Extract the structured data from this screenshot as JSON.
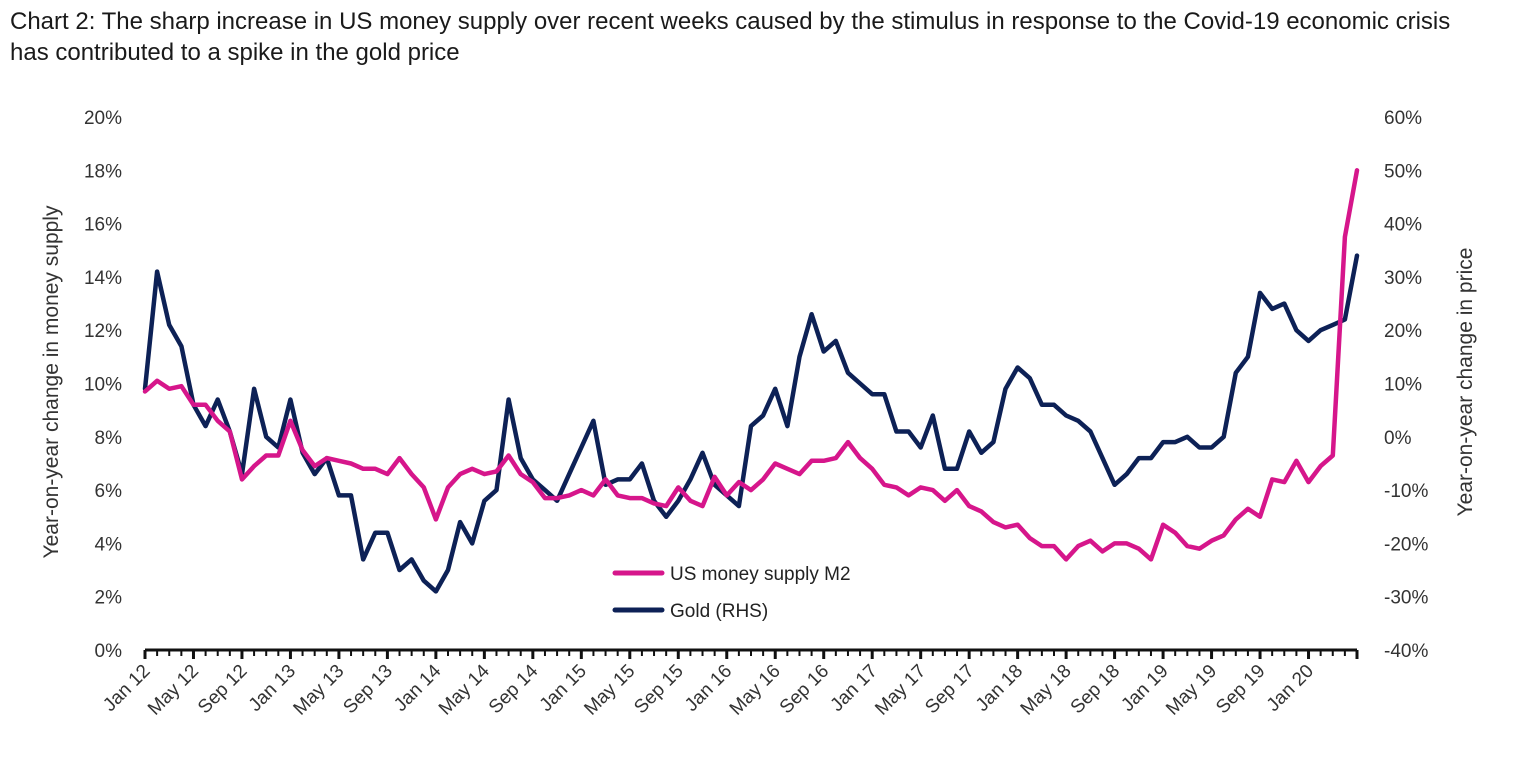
{
  "chart_data": {
    "type": "line",
    "title": "Chart 2: The sharp increase in US money supply over recent weeks caused by the stimulus in response to the Covid-19 economic crisis has contributed to a spike in the gold price",
    "ylabel_left": "Year-on-year change in money supply",
    "ylabel_right": "Year-on-year change in price",
    "ylim_left": [
      0,
      20
    ],
    "ylim_right": [
      -40,
      60
    ],
    "yticks_left": [
      "0%",
      "2%",
      "4%",
      "6%",
      "8%",
      "10%",
      "12%",
      "14%",
      "16%",
      "18%",
      "20%"
    ],
    "yticks_right": [
      "-40%",
      "-30%",
      "-20%",
      "-10%",
      "0%",
      "10%",
      "20%",
      "30%",
      "40%",
      "50%",
      "60%"
    ],
    "x_start": "Jan 12",
    "x_tick_labels": [
      "Jan 12",
      "May 12",
      "Sep 12",
      "Jan 13",
      "May 13",
      "Sep 13",
      "Jan 14",
      "May 14",
      "Sep 14",
      "Jan 15",
      "May 15",
      "Sep 15",
      "Jan 16",
      "May 16",
      "Sep 16",
      "Jan 17",
      "May 17",
      "Sep 17",
      "Jan 18",
      "May 18",
      "Sep 18",
      "Jan 19",
      "May 19",
      "Sep 19",
      "Jan 20"
    ],
    "grid": false,
    "legend_position": "bottom-center",
    "series": [
      {
        "name": "US money supply M2",
        "axis": "left",
        "color": "#d6168b",
        "values": [
          9.7,
          10.1,
          9.8,
          9.9,
          9.2,
          9.2,
          8.6,
          8.2,
          6.4,
          6.9,
          7.3,
          7.3,
          8.6,
          7.5,
          6.9,
          7.2,
          7.1,
          7.0,
          6.8,
          6.8,
          6.6,
          7.2,
          6.6,
          6.1,
          4.9,
          6.1,
          6.6,
          6.8,
          6.6,
          6.7,
          7.3,
          6.6,
          6.3,
          5.7,
          5.7,
          5.8,
          6.0,
          5.8,
          6.4,
          5.8,
          5.7,
          5.7,
          5.5,
          5.4,
          6.1,
          5.6,
          5.4,
          6.5,
          5.8,
          6.3,
          6.0,
          6.4,
          7.0,
          6.8,
          6.6,
          7.1,
          7.1,
          7.2,
          7.8,
          7.2,
          6.8,
          6.2,
          6.1,
          5.8,
          6.1,
          6.0,
          5.6,
          6.0,
          5.4,
          5.2,
          4.8,
          4.6,
          4.7,
          4.2,
          3.9,
          3.9,
          3.4,
          3.9,
          4.1,
          3.7,
          4.0,
          4.0,
          3.8,
          3.4,
          4.7,
          4.4,
          3.9,
          3.8,
          4.1,
          4.3,
          4.9,
          5.3,
          5.0,
          6.4,
          6.3,
          7.1,
          6.3,
          6.9,
          7.3,
          15.5,
          18.0
        ]
      },
      {
        "name": "Gold (RHS)",
        "axis": "right",
        "color": "#0d2156",
        "values": [
          9,
          31,
          21,
          17,
          6,
          2,
          7,
          1,
          -7,
          9,
          0,
          -2,
          7,
          -3,
          -7,
          -4,
          -11,
          -11,
          -23,
          -18,
          -18,
          -25,
          -23,
          -27,
          -29,
          -25,
          -16,
          -20,
          -12,
          -10,
          7,
          -4,
          -8,
          -10,
          -12,
          -7,
          -2,
          3,
          -9,
          -8,
          -8,
          -5,
          -12,
          -15,
          -12,
          -8,
          -3,
          -9,
          -11,
          -13,
          2,
          4,
          9,
          2,
          15,
          23,
          16,
          18,
          12,
          10,
          8,
          8,
          1,
          1,
          -2,
          4,
          -6,
          -6,
          1,
          -3,
          -1,
          9,
          13,
          11,
          6,
          6,
          4,
          3,
          1,
          -4,
          -9,
          -7,
          -4,
          -4,
          -1,
          -1,
          0,
          -2,
          -2,
          0,
          12,
          15,
          27,
          24,
          25,
          20,
          18,
          20,
          21,
          22,
          34
        ]
      }
    ]
  }
}
